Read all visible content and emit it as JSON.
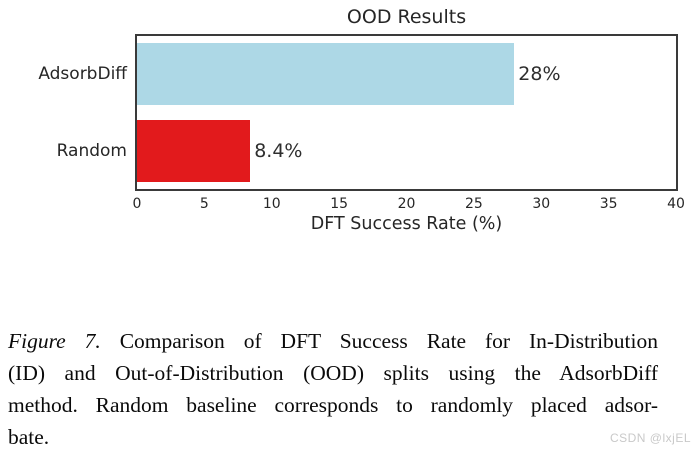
{
  "chart_data": {
    "type": "bar",
    "orientation": "horizontal",
    "title": "OOD Results",
    "categories": [
      "AdsorbDiff",
      "Random"
    ],
    "values": [
      28,
      8.4
    ],
    "value_labels": [
      "28%",
      "8.4%"
    ],
    "colors": [
      "#add8e6",
      "#e21a1c"
    ],
    "xlabel": "DFT Success Rate (%)",
    "xlim": [
      0,
      40
    ],
    "x_ticks": [
      0,
      5,
      10,
      15,
      20,
      25,
      30,
      35,
      40
    ],
    "grid": false,
    "legend": false
  },
  "caption": {
    "figure_label": "Figure 7.",
    "line1_rest": "Comparison of DFT Success Rate for In-Distribution",
    "line2": "(ID) and Out-of-Distribution (OOD) splits using the AdsorbDiff",
    "line3": "method. Random baseline corresponds to randomly placed adsor-",
    "line4": "bate."
  },
  "watermark": "CSDN @lxjEL"
}
